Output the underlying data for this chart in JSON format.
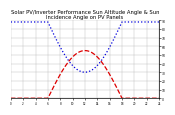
{
  "title": "Solar PV/Inverter Performance Sun Altitude Angle & Sun Incidence Angle on PV Panels",
  "title_fontsize": 3.8,
  "ylim": [
    0,
    90
  ],
  "xlim": [
    0,
    288
  ],
  "xtick_count": 13,
  "yticks_right": [
    0,
    10,
    20,
    30,
    40,
    50,
    60,
    70,
    80,
    90
  ],
  "blue_color": "#0000dd",
  "red_color": "#dd0000",
  "bg_color": "#ffffff",
  "grid_color": "#bbbbbb",
  "blue_linestyle": "dotted",
  "red_linestyle": "dashed",
  "linewidth": 0.9
}
